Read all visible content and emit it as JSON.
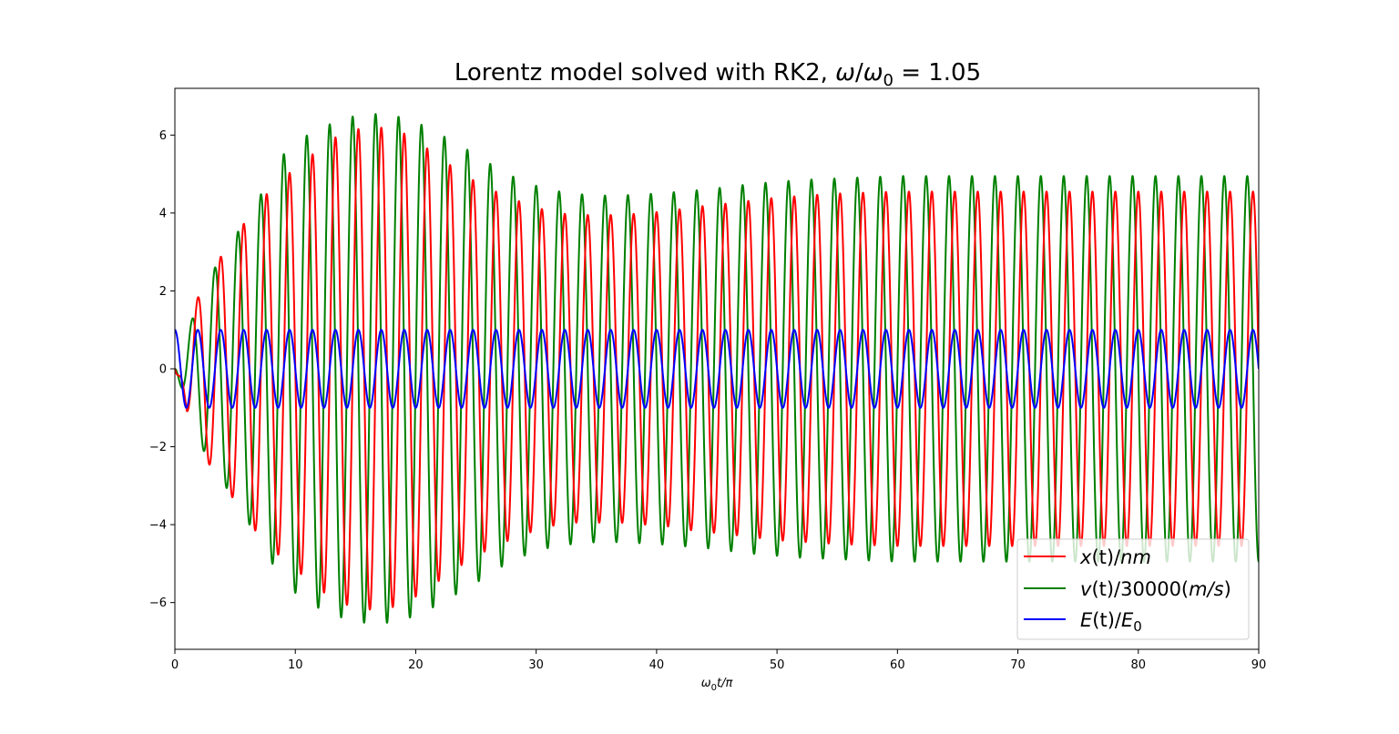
{
  "chart_data": {
    "type": "line",
    "title": {
      "prefix": "Lorentz model solved with RK2, ",
      "math": {
        "omega": "ω",
        "slash": "/",
        "sub": "0",
        "eq": " = 1.05"
      }
    },
    "xlabel": {
      "omega": "ω",
      "sub": "0",
      "rest": "t/π"
    },
    "ylabel": "",
    "xlim": [
      0,
      90
    ],
    "ylim": [
      -7.2,
      7.2
    ],
    "xticks": [
      "0",
      "10",
      "20",
      "30",
      "40",
      "50",
      "60",
      "70",
      "80",
      "90"
    ],
    "yticks": [
      "−6",
      "−4",
      "−2",
      "0",
      "2",
      "4",
      "6"
    ],
    "grid": false,
    "legend_position": "lower-right",
    "drive_ratio": 1.05,
    "series": [
      {
        "key": "x",
        "legend": {
          "var": "x",
          "mid": "(t)/",
          "unit": "nm"
        },
        "color": "#ff0000",
        "phase_lag_x_pi": 0.5,
        "envelope": [
          [
            0,
            0
          ],
          [
            1,
            1.1
          ],
          [
            2.5,
            2.3
          ],
          [
            5,
            3.4
          ],
          [
            7,
            4.3
          ],
          [
            9,
            4.9
          ],
          [
            11,
            5.4
          ],
          [
            13,
            5.9
          ],
          [
            15,
            6.15
          ],
          [
            17,
            6.2
          ],
          [
            19,
            6.05
          ],
          [
            21,
            5.65
          ],
          [
            23,
            5.2
          ],
          [
            25,
            4.8
          ],
          [
            27,
            4.5
          ],
          [
            29,
            4.25
          ],
          [
            31,
            4.05
          ],
          [
            33,
            3.95
          ],
          [
            35,
            3.95
          ],
          [
            37,
            3.95
          ],
          [
            39,
            4.0
          ],
          [
            41,
            4.05
          ],
          [
            43,
            4.15
          ],
          [
            46,
            4.25
          ],
          [
            50,
            4.4
          ],
          [
            55,
            4.5
          ],
          [
            60,
            4.55
          ],
          [
            70,
            4.55
          ],
          [
            80,
            4.55
          ],
          [
            90,
            4.55
          ]
        ]
      },
      {
        "key": "v",
        "legend": {
          "var": "v",
          "mid": "(t)/30000(",
          "unit": "m/s",
          "tail": ")"
        },
        "color": "#008000",
        "phase_lag_x_pi": 0,
        "envelope": [
          [
            0,
            0
          ],
          [
            1,
            0.9
          ],
          [
            2.5,
            2.2
          ],
          [
            5,
            3.4
          ],
          [
            7,
            4.4
          ],
          [
            9,
            5.5
          ],
          [
            11,
            6.0
          ],
          [
            13,
            6.3
          ],
          [
            15,
            6.5
          ],
          [
            17,
            6.55
          ],
          [
            19,
            6.45
          ],
          [
            21,
            6.2
          ],
          [
            23,
            5.85
          ],
          [
            25,
            5.5
          ],
          [
            27,
            5.1
          ],
          [
            29,
            4.8
          ],
          [
            31,
            4.6
          ],
          [
            33,
            4.5
          ],
          [
            35,
            4.45
          ],
          [
            37,
            4.45
          ],
          [
            40,
            4.5
          ],
          [
            44,
            4.6
          ],
          [
            48,
            4.75
          ],
          [
            52,
            4.85
          ],
          [
            56,
            4.9
          ],
          [
            60,
            4.95
          ],
          [
            70,
            4.95
          ],
          [
            80,
            4.95
          ],
          [
            90,
            4.95
          ]
        ]
      },
      {
        "key": "E",
        "legend": {
          "var": "E",
          "mid": "(t)/",
          "unit": "E",
          "sub": "0"
        },
        "color": "#0000ff",
        "amplitude": 1.0
      }
    ]
  }
}
